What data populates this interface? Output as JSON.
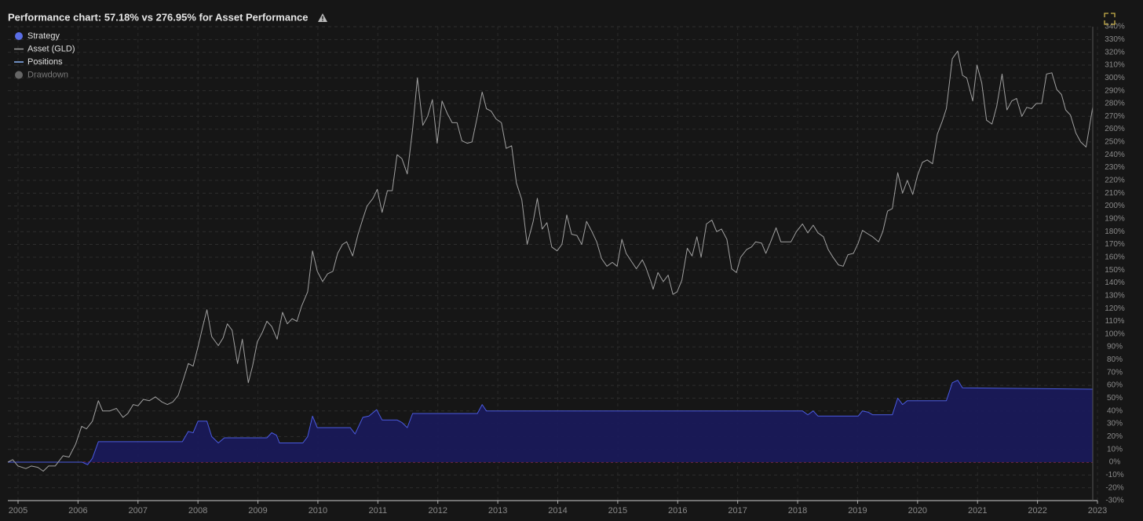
{
  "chart_data": {
    "type": "line",
    "title": "Performance chart: 57.18% vs 276.95% for Asset Performance",
    "grid": true,
    "legend_position": "top-left",
    "legend": [
      {
        "name": "Strategy",
        "color": "#5a6ee6",
        "marker": "circle"
      },
      {
        "name": "Asset (GLD)",
        "color": "#a0a0a0",
        "marker": "line"
      },
      {
        "name": "Positions",
        "color": "#8ab4f8",
        "marker": "line"
      },
      {
        "name": "Drawdown",
        "color": "#666666",
        "marker": "circle"
      }
    ],
    "xlim": [
      2004.83,
      2023
    ],
    "xticks": [
      2005,
      2006,
      2007,
      2008,
      2009,
      2010,
      2011,
      2012,
      2013,
      2014,
      2015,
      2016,
      2017,
      2018,
      2019,
      2020,
      2021,
      2022,
      2023
    ],
    "ylim": [
      -30,
      340
    ],
    "yticks": [
      {
        "value": -30,
        "label": "-30%"
      },
      {
        "value": -20,
        "label": "-20%"
      },
      {
        "value": -10,
        "label": "-10%"
      },
      {
        "value": 0,
        "label": "0%"
      },
      {
        "value": 10,
        "label": "10%"
      },
      {
        "value": 20,
        "label": "20%"
      },
      {
        "value": 30,
        "label": "30%"
      },
      {
        "value": 40,
        "label": "40%"
      },
      {
        "value": 50,
        "label": "50%"
      },
      {
        "value": 60,
        "label": "60%"
      },
      {
        "value": 70,
        "label": "70%"
      },
      {
        "value": 80,
        "label": "80%"
      },
      {
        "value": 90,
        "label": "90%"
      },
      {
        "value": 100,
        "label": "100%"
      },
      {
        "value": 110,
        "label": "110%"
      },
      {
        "value": 120,
        "label": "120%"
      },
      {
        "value": 130,
        "label": "130%"
      },
      {
        "value": 140,
        "label": "140%"
      },
      {
        "value": 150,
        "label": "150%"
      },
      {
        "value": 160,
        "label": "160%"
      },
      {
        "value": 170,
        "label": "170%"
      },
      {
        "value": 180,
        "label": "180%"
      },
      {
        "value": 190,
        "label": "190%"
      },
      {
        "value": 200,
        "label": "200%"
      },
      {
        "value": 210,
        "label": "210%"
      },
      {
        "value": 220,
        "label": "220%"
      },
      {
        "value": 230,
        "label": "230%"
      },
      {
        "value": 240,
        "label": "240%"
      },
      {
        "value": 250,
        "label": "250%"
      },
      {
        "value": 260,
        "label": "260%"
      },
      {
        "value": 270,
        "label": "270%"
      },
      {
        "value": 280,
        "label": "280%"
      },
      {
        "value": 290,
        "label": "290%"
      },
      {
        "value": 300,
        "label": "300%"
      },
      {
        "value": 310,
        "label": "310%"
      },
      {
        "value": 320,
        "label": "320%"
      },
      {
        "value": 330,
        "label": "330%"
      },
      {
        "value": 340,
        "label": "340%"
      }
    ],
    "series": [
      {
        "name": "Strategy",
        "color": "#4a5ae0",
        "fill": "#1a1a5c",
        "x": [
          2004.83,
          2006.07,
          2006.16,
          2006.24,
          2006.34,
          2007.74,
          2007.84,
          2007.92,
          2008.0,
          2008.15,
          2008.23,
          2008.34,
          2008.44,
          2009.15,
          2009.23,
          2009.31,
          2009.36,
          2009.75,
          2009.83,
          2009.91,
          2009.99,
          2010.54,
          2010.62,
          2010.75,
          2010.85,
          2010.98,
          2011.07,
          2011.32,
          2011.4,
          2011.49,
          2011.58,
          2012.66,
          2012.74,
          2012.81,
          2018.08,
          2018.17,
          2018.26,
          2018.34,
          2019.01,
          2019.08,
          2019.18,
          2019.25,
          2019.58,
          2019.67,
          2019.75,
          2019.83,
          2020.48,
          2020.58,
          2020.67,
          2020.75,
          2022.92
        ],
        "values": [
          0,
          0,
          -2,
          3,
          16,
          16,
          24,
          23,
          32,
          32,
          20,
          15,
          19,
          19,
          23,
          21,
          15,
          15,
          20,
          36,
          27,
          27,
          22,
          35,
          36,
          41,
          33,
          33,
          31,
          27,
          38,
          38,
          45,
          40,
          40,
          37,
          40,
          36,
          36,
          40,
          39,
          37,
          37,
          50,
          45,
          48,
          48,
          62,
          64,
          58,
          57
        ]
      },
      {
        "name": "Asset (GLD)",
        "color": "#a0a0a0",
        "x": [
          2004.83,
          2004.91,
          2005.0,
          2005.13,
          2005.22,
          2005.33,
          2005.42,
          2005.51,
          2005.62,
          2005.75,
          2005.85,
          2005.96,
          2006.06,
          2006.14,
          2006.24,
          2006.34,
          2006.41,
          2006.53,
          2006.64,
          2006.75,
          2006.83,
          2006.92,
          2007.0,
          2007.09,
          2007.19,
          2007.29,
          2007.4,
          2007.49,
          2007.58,
          2007.67,
          2007.76,
          2007.84,
          2007.92,
          2008.0,
          2008.08,
          2008.15,
          2008.23,
          2008.34,
          2008.42,
          2008.49,
          2008.57,
          2008.66,
          2008.74,
          2008.84,
          2008.91,
          2008.99,
          2009.07,
          2009.15,
          2009.23,
          2009.32,
          2009.41,
          2009.49,
          2009.57,
          2009.65,
          2009.73,
          2009.83,
          2009.91,
          2009.99,
          2010.08,
          2010.16,
          2010.25,
          2010.33,
          2010.41,
          2010.48,
          2010.58,
          2010.67,
          2010.75,
          2010.82,
          2010.92,
          2010.99,
          2011.07,
          2011.16,
          2011.24,
          2011.32,
          2011.4,
          2011.49,
          2011.58,
          2011.66,
          2011.75,
          2011.83,
          2011.91,
          2011.99,
          2012.07,
          2012.16,
          2012.24,
          2012.32,
          2012.4,
          2012.49,
          2012.57,
          2012.66,
          2012.74,
          2012.81,
          2012.89,
          2012.97,
          2013.06,
          2013.14,
          2013.23,
          2013.31,
          2013.4,
          2013.49,
          2013.59,
          2013.66,
          2013.74,
          2013.82,
          2013.9,
          2013.99,
          2014.07,
          2014.15,
          2014.23,
          2014.32,
          2014.4,
          2014.48,
          2014.57,
          2014.65,
          2014.73,
          2014.82,
          2014.91,
          2014.99,
          2015.07,
          2015.14,
          2015.24,
          2015.31,
          2015.41,
          2015.47,
          2015.56,
          2015.59,
          2015.67,
          2015.76,
          2015.84,
          2015.92,
          2015.99,
          2016.07,
          2016.16,
          2016.24,
          2016.32,
          2016.39,
          2016.48,
          2016.57,
          2016.65,
          2016.73,
          2016.82,
          2016.9,
          2016.98,
          2017.05,
          2017.15,
          2017.23,
          2017.3,
          2017.4,
          2017.47,
          2017.55,
          2017.64,
          2017.72,
          2017.89,
          2017.98,
          2018.08,
          2018.17,
          2018.26,
          2018.34,
          2018.43,
          2018.51,
          2018.59,
          2018.68,
          2018.76,
          2018.84,
          2018.93,
          2019.01,
          2019.08,
          2019.18,
          2019.25,
          2019.35,
          2019.42,
          2019.5,
          2019.58,
          2019.67,
          2019.75,
          2019.83,
          2019.92,
          2020.0,
          2020.08,
          2020.16,
          2020.25,
          2020.33,
          2020.41,
          2020.48,
          2020.58,
          2020.67,
          2020.75,
          2020.82,
          2020.92,
          2020.99,
          2021.07,
          2021.15,
          2021.24,
          2021.32,
          2021.41,
          2021.49,
          2021.57,
          2021.65,
          2021.74,
          2021.82,
          2021.9,
          2021.98,
          2022.07,
          2022.15,
          2022.24,
          2022.32,
          2022.4,
          2022.47,
          2022.55,
          2022.64,
          2022.72,
          2022.81,
          2022.92
        ],
        "values": [
          0,
          2,
          -3,
          -5,
          -3,
          -4,
          -7,
          -3,
          -3,
          5,
          4,
          14,
          28,
          26,
          32,
          48,
          40,
          40,
          42,
          35,
          38,
          45,
          44,
          49,
          48,
          51,
          47,
          45,
          47,
          52,
          65,
          77,
          75,
          90,
          106,
          119,
          98,
          91,
          97,
          108,
          103,
          77,
          96,
          62,
          75,
          94,
          101,
          110,
          106,
          96,
          117,
          108,
          112,
          110,
          122,
          133,
          165,
          149,
          141,
          147,
          149,
          163,
          170,
          172,
          161,
          178,
          190,
          200,
          206,
          213,
          195,
          212,
          212,
          240,
          237,
          225,
          260,
          300,
          263,
          270,
          283,
          249,
          282,
          272,
          265,
          265,
          251,
          249,
          250,
          270,
          289,
          276,
          274,
          268,
          265,
          245,
          247,
          218,
          205,
          170,
          188,
          206,
          182,
          187,
          168,
          165,
          170,
          193,
          178,
          177,
          170,
          188,
          180,
          172,
          159,
          153,
          156,
          153,
          174,
          163,
          156,
          151,
          158,
          152,
          140,
          135,
          148,
          141,
          146,
          131,
          133,
          142,
          167,
          161,
          176,
          160,
          186,
          189,
          180,
          182,
          174,
          151,
          148,
          160,
          166,
          168,
          172,
          171,
          163,
          172,
          183,
          172,
          172,
          180,
          186,
          179,
          185,
          179,
          176,
          166,
          160,
          154,
          153,
          162,
          163,
          171,
          181,
          178,
          176,
          172,
          180,
          196,
          198,
          226,
          210,
          220,
          209,
          224,
          234,
          236,
          233,
          256,
          266,
          276,
          315,
          321,
          302,
          300,
          282,
          310,
          296,
          267,
          264,
          278,
          303,
          275,
          282,
          284,
          270,
          277,
          276,
          280,
          280,
          303,
          304,
          291,
          287,
          275,
          271,
          257,
          250,
          246,
          277
        ]
      }
    ]
  }
}
